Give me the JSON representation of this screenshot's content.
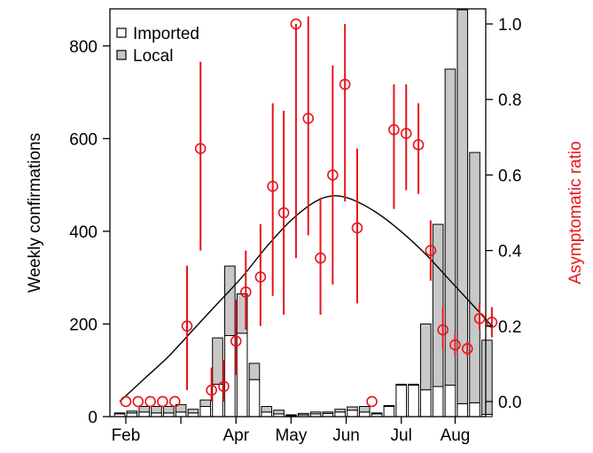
{
  "chart_data": {
    "type": "bar",
    "ylabel": "Weekly confirmations",
    "y2label": "Asymptomatic ratio",
    "ylim": [
      0,
      880
    ],
    "y2lim": [
      -0.04,
      1.04
    ],
    "yticks": [
      0,
      200,
      400,
      600,
      800
    ],
    "y2ticks": [
      "0.0",
      "0.2",
      "0.4",
      "0.6",
      "0.8",
      "1.0"
    ],
    "xlim": [
      -0.8,
      29.9
    ],
    "xticks": [
      {
        "pos": 0.5,
        "label": "Feb"
      },
      {
        "pos": 5,
        "label": ""
      },
      {
        "pos": 9.5,
        "label": "Apr"
      },
      {
        "pos": 14,
        "label": "May"
      },
      {
        "pos": 18.5,
        "label": "Jun"
      },
      {
        "pos": 23,
        "label": "Jul"
      },
      {
        "pos": 27.4,
        "label": "Aug"
      }
    ],
    "legend": {
      "position": "top-left",
      "entries": [
        {
          "label": "Imported",
          "color": "#ffffff"
        },
        {
          "label": "Local",
          "color": "#c8c8c8"
        }
      ]
    },
    "bar_colors": {
      "imported": "#ffffff",
      "local": "#c8c8c8",
      "stroke": "#000000"
    },
    "series": [
      {
        "name": "Imported",
        "stacked": "bottom",
        "values": [
          6,
          8,
          10,
          8,
          8,
          10,
          8,
          22,
          70,
          175,
          180,
          80,
          10,
          6,
          2,
          4,
          6,
          7,
          10,
          14,
          10,
          6,
          22,
          68,
          68,
          58,
          65,
          68,
          28,
          30,
          5
        ]
      },
      {
        "name": "Local",
        "stacked": "top",
        "values": [
          2,
          4,
          12,
          14,
          14,
          16,
          8,
          14,
          100,
          150,
          85,
          35,
          12,
          8,
          2,
          3,
          4,
          3,
          6,
          7,
          12,
          2,
          2,
          2,
          2,
          142,
          350,
          682,
          850,
          540,
          160
        ]
      }
    ],
    "ratio_color": "#e8141b",
    "ratio_points": [
      {
        "x": 0.5,
        "y": 0.0,
        "lo": null,
        "hi": null
      },
      {
        "x": 1.5,
        "y": 0.0,
        "lo": null,
        "hi": null
      },
      {
        "x": 2.5,
        "y": 0.0,
        "lo": null,
        "hi": null
      },
      {
        "x": 3.5,
        "y": 0.0,
        "lo": null,
        "hi": null
      },
      {
        "x": 4.5,
        "y": 0.0,
        "lo": null,
        "hi": null
      },
      {
        "x": 5.5,
        "y": 0.2,
        "lo": 0.03,
        "hi": 0.36
      },
      {
        "x": 6.6,
        "y": 0.67,
        "lo": 0.4,
        "hi": 0.9
      },
      {
        "x": 7.5,
        "y": 0.03,
        "lo": 0.0,
        "hi": 0.09
      },
      {
        "x": 8.5,
        "y": 0.04,
        "lo": 0.0,
        "hi": 0.11
      },
      {
        "x": 9.5,
        "y": 0.16,
        "lo": 0.07,
        "hi": 0.27
      },
      {
        "x": 10.3,
        "y": 0.29,
        "lo": 0.19,
        "hi": 0.4
      },
      {
        "x": 11.5,
        "y": 0.33,
        "lo": 0.2,
        "hi": 0.47
      },
      {
        "x": 12.5,
        "y": 0.57,
        "lo": 0.28,
        "hi": 0.79
      },
      {
        "x": 13.4,
        "y": 0.5,
        "lo": 0.23,
        "hi": 0.77
      },
      {
        "x": 14.4,
        "y": 1.0,
        "lo": 0.38,
        "hi": 1.0
      },
      {
        "x": 15.4,
        "y": 0.75,
        "lo": 0.44,
        "hi": 1.02
      },
      {
        "x": 16.4,
        "y": 0.38,
        "lo": 0.23,
        "hi": 0.54
      },
      {
        "x": 17.4,
        "y": 0.6,
        "lo": 0.31,
        "hi": 0.89
      },
      {
        "x": 18.4,
        "y": 0.84,
        "lo": 0.53,
        "hi": 1.0
      },
      {
        "x": 19.4,
        "y": 0.46,
        "lo": 0.26,
        "hi": 0.67
      },
      {
        "x": 20.6,
        "y": 0.0,
        "lo": null,
        "hi": null
      },
      {
        "x": 22.4,
        "y": 0.72,
        "lo": 0.51,
        "hi": 0.84
      },
      {
        "x": 23.4,
        "y": 0.71,
        "lo": 0.56,
        "hi": 0.84
      },
      {
        "x": 24.4,
        "y": 0.68,
        "lo": 0.55,
        "hi": 0.79
      },
      {
        "x": 25.4,
        "y": 0.4,
        "lo": 0.32,
        "hi": 0.48
      },
      {
        "x": 26.4,
        "y": 0.19,
        "lo": 0.14,
        "hi": 0.25
      },
      {
        "x": 27.4,
        "y": 0.15,
        "lo": 0.12,
        "hi": 0.18
      },
      {
        "x": 28.4,
        "y": 0.14,
        "lo": 0.12,
        "hi": 0.16
      },
      {
        "x": 29.4,
        "y": 0.22,
        "lo": 0.19,
        "hi": 0.26
      },
      {
        "x": 30.4,
        "y": 0.21,
        "lo": 0.17,
        "hi": 0.25
      }
    ],
    "trend_curve": {
      "axis": "right",
      "x": [
        0,
        2,
        4,
        6,
        8,
        10,
        12,
        14,
        16,
        17.5,
        19,
        21,
        23,
        25,
        27,
        29,
        30.4
      ],
      "y": [
        0.0,
        0.06,
        0.12,
        0.19,
        0.26,
        0.33,
        0.41,
        0.48,
        0.53,
        0.545,
        0.535,
        0.5,
        0.45,
        0.39,
        0.32,
        0.25,
        0.2
      ]
    }
  }
}
